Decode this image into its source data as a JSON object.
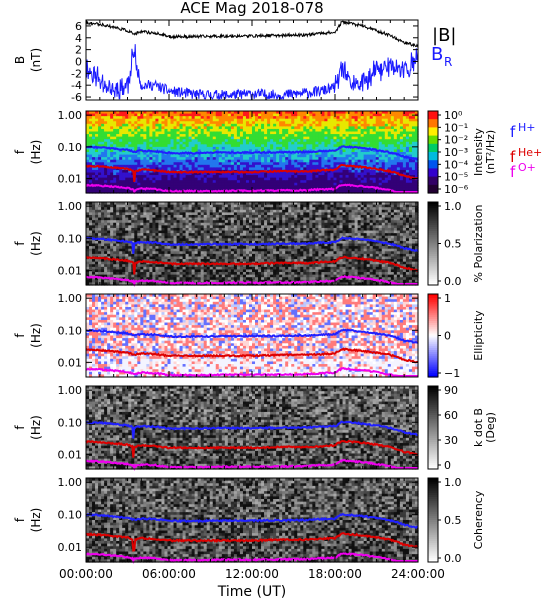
{
  "title": "ACE Mag 2018-078",
  "x_axis": {
    "label": "Time (UT)",
    "ticks": [
      "00:00:00",
      "06:00:00",
      "12:00:00",
      "18:00:00",
      "24:00:00"
    ],
    "range_hours": [
      0,
      24
    ]
  },
  "legend_top": {
    "b_mag": "|B|",
    "b_r": "B",
    "b_r_sub": "R"
  },
  "legend_freqs": [
    {
      "base": "f",
      "sub": "H+",
      "color": "#2020ff"
    },
    {
      "base": "f",
      "sub": "He+",
      "color": "#dd0000"
    },
    {
      "base": "f",
      "sub": "O+",
      "color": "#ee00ee"
    }
  ],
  "panels": [
    {
      "id": "field",
      "ylabel": "B",
      "yunit": "(nT)",
      "yticks": [
        "6",
        "4",
        "2",
        "0",
        "-2",
        "-4",
        "-6"
      ],
      "ylim": [
        -6.5,
        7
      ]
    },
    {
      "id": "intensity",
      "ylabel": "f",
      "yunit": "(Hz)",
      "yticks": [
        "1.00",
        "0.10",
        "0.01"
      ],
      "cbar_label": "Intensity",
      "cbar_unit": "(nT²/Hz)",
      "cbar_ticks": [
        "10⁰",
        "10⁻¹",
        "10⁻²",
        "10⁻³",
        "10⁻⁴",
        "10⁻⁵",
        "10⁻⁶"
      ]
    },
    {
      "id": "polarization",
      "ylabel": "f",
      "yunit": "(Hz)",
      "yticks": [
        "1.00",
        "0.10",
        "0.01"
      ],
      "cbar_label": "% Polarization",
      "cbar_ticks": [
        "1.0",
        "0.5",
        "0.0"
      ]
    },
    {
      "id": "ellipticity",
      "ylabel": "f",
      "yunit": "(Hz)",
      "yticks": [
        "1.00",
        "0.10",
        "0.01"
      ],
      "cbar_label": "Ellipticity",
      "cbar_ticks": [
        "1",
        "0",
        "−1"
      ]
    },
    {
      "id": "kdotb",
      "ylabel": "f",
      "yunit": "(Hz)",
      "yticks": [
        "1.00",
        "0.10",
        "0.01"
      ],
      "cbar_label": "k dot B",
      "cbar_unit": "(Deg)",
      "cbar_ticks": [
        "90",
        "60",
        "30",
        "0"
      ]
    },
    {
      "id": "coherency",
      "ylabel": "f",
      "yunit": "(Hz)",
      "yticks": [
        "1.00",
        "0.10",
        "0.01"
      ],
      "cbar_label": "Coherency",
      "cbar_ticks": [
        "1.0",
        "0.5",
        "0.0"
      ]
    }
  ],
  "colors": {
    "b_mag": "#000000",
    "b_r": "#1a1aff",
    "f_h": "#2020ff",
    "f_he": "#dd0000",
    "f_o": "#ee00ee"
  },
  "chart_data": {
    "type": "line",
    "title": "ACE Mag 2018-078",
    "xlabel": "Time (UT)",
    "x_hours": [
      0,
      1,
      2,
      3,
      3.5,
      4,
      5,
      6,
      8,
      10,
      12,
      14,
      16,
      17,
      18,
      18.5,
      19,
      20,
      21,
      22,
      23,
      24
    ],
    "series": [
      {
        "name": "|B|",
        "values": [
          6.5,
          6.3,
          5.8,
          5.2,
          4.6,
          5.0,
          4.8,
          4.2,
          4.2,
          4.3,
          4.3,
          4.4,
          4.5,
          4.8,
          4.9,
          6.7,
          6.5,
          6.0,
          5.2,
          4.4,
          3.2,
          2.6
        ]
      },
      {
        "name": "B_R",
        "values": [
          -1,
          -3,
          -5,
          -4,
          0.5,
          -4,
          -4,
          -5,
          -5.6,
          -5.7,
          -5.5,
          -5.7,
          -5.3,
          -5.0,
          -4.4,
          -1.5,
          -3.5,
          -4.0,
          -1.5,
          -0.8,
          -1.5,
          0.5
        ]
      },
      {
        "name": "f_H+",
        "values": [
          0.099,
          0.096,
          0.088,
          0.079,
          0.07,
          0.076,
          0.073,
          0.064,
          0.064,
          0.066,
          0.066,
          0.067,
          0.069,
          0.073,
          0.075,
          0.102,
          0.099,
          0.091,
          0.079,
          0.067,
          0.049,
          0.04
        ]
      },
      {
        "name": "f_He+",
        "values": [
          0.025,
          0.024,
          0.022,
          0.02,
          0.017,
          0.019,
          0.018,
          0.016,
          0.016,
          0.016,
          0.016,
          0.017,
          0.017,
          0.018,
          0.019,
          0.026,
          0.025,
          0.023,
          0.02,
          0.017,
          0.012,
          0.01
        ]
      },
      {
        "name": "f_O+",
        "values": [
          0.0062,
          0.006,
          0.0055,
          0.005,
          0.0044,
          0.0048,
          0.0046,
          0.004,
          0.004,
          0.0041,
          0.0041,
          0.0042,
          0.0043,
          0.0046,
          0.0047,
          0.0064,
          0.0062,
          0.0057,
          0.005,
          0.0042,
          0.0031,
          0.0025
        ]
      }
    ]
  }
}
